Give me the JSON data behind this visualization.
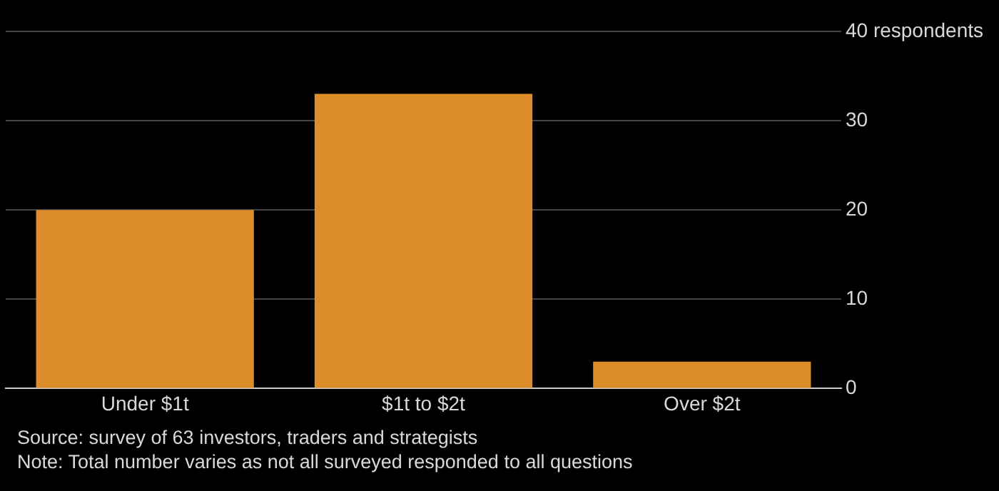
{
  "chart_data": {
    "type": "bar",
    "categories": [
      "Under $1t",
      "$1t to $2t",
      "Over $2t"
    ],
    "values": [
      20,
      33,
      3
    ],
    "color": "#dc8c28",
    "ylim": [
      0,
      40
    ],
    "yticks": [
      0,
      10,
      20,
      30,
      {
        "value": 40,
        "label": "40 respondents"
      }
    ],
    "grid": "y",
    "legend": false,
    "annotations": [
      "Source: survey of 63 investors, traders and strategists",
      "Note: Total number varies as not all surveyed responded to all questions"
    ]
  }
}
